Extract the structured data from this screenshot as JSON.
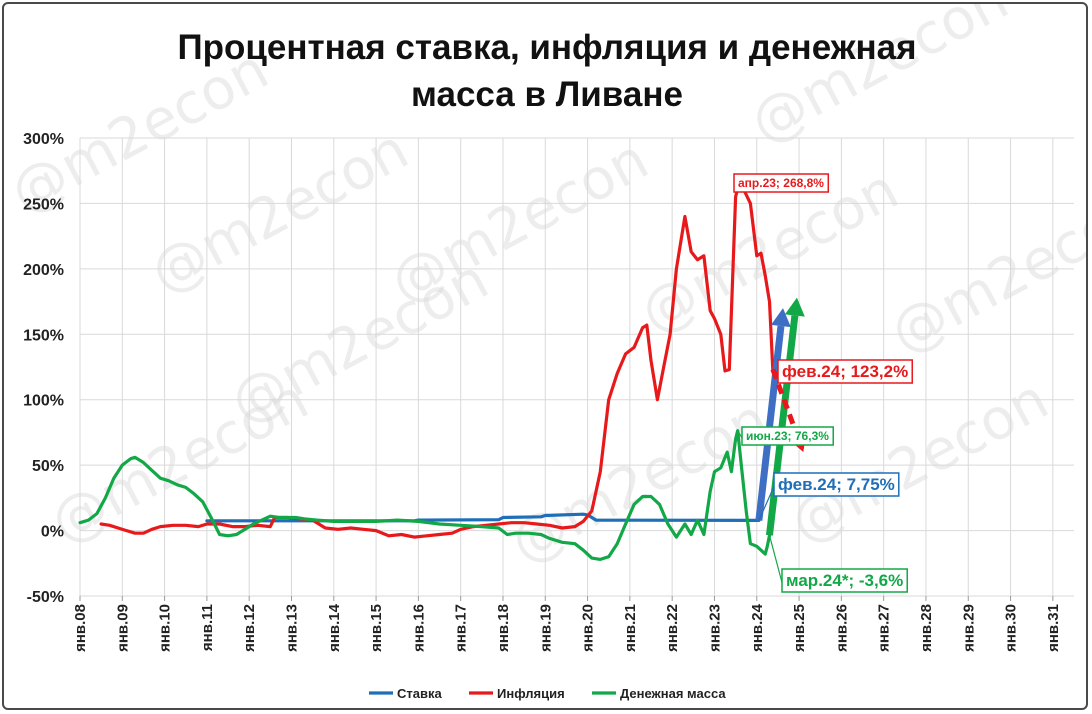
{
  "chart_data": {
    "type": "line",
    "title_lines": [
      "Процентная ставка, инфляция и денежная",
      "масса в Ливане"
    ],
    "xlabel": "",
    "ylabel": "",
    "ylim": [
      -50,
      300
    ],
    "y_ticks": [
      -50,
      0,
      50,
      100,
      150,
      200,
      250,
      300
    ],
    "y_tick_labels": [
      "-50%",
      "0%",
      "50%",
      "100%",
      "150%",
      "200%",
      "250%",
      "300%"
    ],
    "x_ticks": [
      "янв.08",
      "янв.09",
      "янв.10",
      "янв.11",
      "янв.12",
      "янв.13",
      "янв.14",
      "янв.15",
      "янв.16",
      "янв.17",
      "янв.18",
      "янв.19",
      "янв.20",
      "янв.21",
      "янв.22",
      "янв.23",
      "янв.24",
      "янв.25",
      "янв.26",
      "янв.27",
      "янв.28",
      "янв.29",
      "янв.30",
      "янв.31"
    ],
    "grid": true,
    "legend_position": "bottom",
    "series": [
      {
        "name": "Ставка",
        "color": "#1F6FB8",
        "points": [
          [
            2011.0,
            7.5
          ],
          [
            2015.9,
            7.5
          ],
          [
            2016.0,
            8.0
          ],
          [
            2017.9,
            8.3
          ],
          [
            2018.0,
            10.0
          ],
          [
            2018.9,
            10.5
          ],
          [
            2019.0,
            11.5
          ],
          [
            2019.9,
            12.5
          ],
          [
            2020.0,
            12.0
          ],
          [
            2020.2,
            8.0
          ],
          [
            2024.05,
            7.75
          ]
        ]
      },
      {
        "name": "Инфляция",
        "color": "#E8191B",
        "points": [
          [
            2008.5,
            5
          ],
          [
            2008.7,
            4
          ],
          [
            2008.9,
            2
          ],
          [
            2009.1,
            0
          ],
          [
            2009.3,
            -2
          ],
          [
            2009.5,
            -2
          ],
          [
            2009.7,
            1
          ],
          [
            2009.9,
            3
          ],
          [
            2010.2,
            4
          ],
          [
            2010.5,
            4
          ],
          [
            2010.8,
            3
          ],
          [
            2011.0,
            5
          ],
          [
            2011.3,
            5
          ],
          [
            2011.6,
            3
          ],
          [
            2011.9,
            3
          ],
          [
            2012.2,
            4
          ],
          [
            2012.5,
            3
          ],
          [
            2012.6,
            10
          ],
          [
            2012.9,
            10
          ],
          [
            2013.2,
            9
          ],
          [
            2013.5,
            8
          ],
          [
            2013.8,
            2
          ],
          [
            2014.1,
            1
          ],
          [
            2014.4,
            2
          ],
          [
            2014.7,
            1
          ],
          [
            2015.0,
            0
          ],
          [
            2015.3,
            -4
          ],
          [
            2015.6,
            -3
          ],
          [
            2015.9,
            -5
          ],
          [
            2016.2,
            -4
          ],
          [
            2016.5,
            -3
          ],
          [
            2016.8,
            -2
          ],
          [
            2017.0,
            1
          ],
          [
            2017.3,
            3
          ],
          [
            2017.6,
            4
          ],
          [
            2017.9,
            5
          ],
          [
            2018.2,
            6
          ],
          [
            2018.5,
            6
          ],
          [
            2018.8,
            5
          ],
          [
            2019.1,
            4
          ],
          [
            2019.4,
            2
          ],
          [
            2019.7,
            3
          ],
          [
            2019.9,
            7
          ],
          [
            2020.1,
            15
          ],
          [
            2020.3,
            45
          ],
          [
            2020.5,
            100
          ],
          [
            2020.7,
            120
          ],
          [
            2020.9,
            135
          ],
          [
            2021.1,
            140
          ],
          [
            2021.3,
            155
          ],
          [
            2021.4,
            157
          ],
          [
            2021.5,
            130
          ],
          [
            2021.65,
            100
          ],
          [
            2021.8,
            125
          ],
          [
            2021.95,
            150
          ],
          [
            2022.1,
            200
          ],
          [
            2022.3,
            240
          ],
          [
            2022.45,
            213
          ],
          [
            2022.6,
            207
          ],
          [
            2022.75,
            210
          ],
          [
            2022.9,
            168
          ],
          [
            2023.0,
            162
          ],
          [
            2023.15,
            150
          ],
          [
            2023.25,
            122
          ],
          [
            2023.35,
            123
          ],
          [
            2023.5,
            255
          ],
          [
            2023.6,
            268.8
          ],
          [
            2023.7,
            260
          ],
          [
            2023.85,
            250
          ],
          [
            2024.0,
            210
          ],
          [
            2024.1,
            212
          ],
          [
            2024.2,
            195
          ],
          [
            2024.3,
            175
          ],
          [
            2024.38,
            123.2
          ]
        ]
      },
      {
        "name": "Денежная масса",
        "color": "#12A847",
        "points": [
          [
            2008.0,
            6
          ],
          [
            2008.2,
            8
          ],
          [
            2008.4,
            13
          ],
          [
            2008.6,
            25
          ],
          [
            2008.8,
            40
          ],
          [
            2009.0,
            50
          ],
          [
            2009.2,
            55
          ],
          [
            2009.3,
            56
          ],
          [
            2009.5,
            52
          ],
          [
            2009.7,
            46
          ],
          [
            2009.9,
            40
          ],
          [
            2010.1,
            38
          ],
          [
            2010.3,
            35
          ],
          [
            2010.5,
            33
          ],
          [
            2010.7,
            28
          ],
          [
            2010.9,
            22
          ],
          [
            2011.1,
            10
          ],
          [
            2011.3,
            -3
          ],
          [
            2011.5,
            -4
          ],
          [
            2011.7,
            -3
          ],
          [
            2011.9,
            1
          ],
          [
            2012.1,
            5
          ],
          [
            2012.3,
            8
          ],
          [
            2012.5,
            11
          ],
          [
            2012.7,
            10
          ],
          [
            2012.9,
            10
          ],
          [
            2013.1,
            10
          ],
          [
            2013.3,
            9
          ],
          [
            2013.6,
            8
          ],
          [
            2014.0,
            7
          ],
          [
            2014.5,
            7
          ],
          [
            2015.0,
            7
          ],
          [
            2015.5,
            8
          ],
          [
            2016.0,
            7
          ],
          [
            2016.5,
            5
          ],
          [
            2017.0,
            4
          ],
          [
            2017.5,
            3
          ],
          [
            2017.9,
            2
          ],
          [
            2018.1,
            -3
          ],
          [
            2018.3,
            -2
          ],
          [
            2018.6,
            -2
          ],
          [
            2018.9,
            -3
          ],
          [
            2019.1,
            -6
          ],
          [
            2019.4,
            -9
          ],
          [
            2019.7,
            -10
          ],
          [
            2019.9,
            -15
          ],
          [
            2020.1,
            -21
          ],
          [
            2020.3,
            -22
          ],
          [
            2020.5,
            -20
          ],
          [
            2020.7,
            -10
          ],
          [
            2020.9,
            5
          ],
          [
            2021.1,
            20
          ],
          [
            2021.3,
            26
          ],
          [
            2021.5,
            26
          ],
          [
            2021.7,
            20
          ],
          [
            2021.9,
            5
          ],
          [
            2022.1,
            -5
          ],
          [
            2022.3,
            5
          ],
          [
            2022.45,
            -3
          ],
          [
            2022.6,
            8
          ],
          [
            2022.75,
            -3
          ],
          [
            2022.9,
            30
          ],
          [
            2023.0,
            45
          ],
          [
            2023.15,
            48
          ],
          [
            2023.3,
            60
          ],
          [
            2023.4,
            45
          ],
          [
            2023.5,
            70
          ],
          [
            2023.55,
            76.3
          ],
          [
            2023.65,
            45
          ],
          [
            2023.75,
            15
          ],
          [
            2023.85,
            -10
          ],
          [
            2024.0,
            -12
          ],
          [
            2024.1,
            -15
          ],
          [
            2024.2,
            -18
          ],
          [
            2024.25,
            -12
          ],
          [
            2024.3,
            -3.6
          ]
        ]
      }
    ],
    "annotations": [
      {
        "label": "апр.23; 268,8%",
        "color": "#E8191B",
        "series": "Инфляция"
      },
      {
        "label": "фев.24; 123,2%",
        "color": "#E8191B",
        "series": "Инфляция"
      },
      {
        "label": "июн.23; 76,3%",
        "color": "#12A847",
        "series": "Денежная масса"
      },
      {
        "label": "фев.24; 7,75%",
        "color": "#1F6FB8",
        "series": "Ставка"
      },
      {
        "label": "мар.24*; -3,6%",
        "color": "#12A847",
        "series": "Денежная масса"
      }
    ],
    "watermark": "@m2econ"
  }
}
